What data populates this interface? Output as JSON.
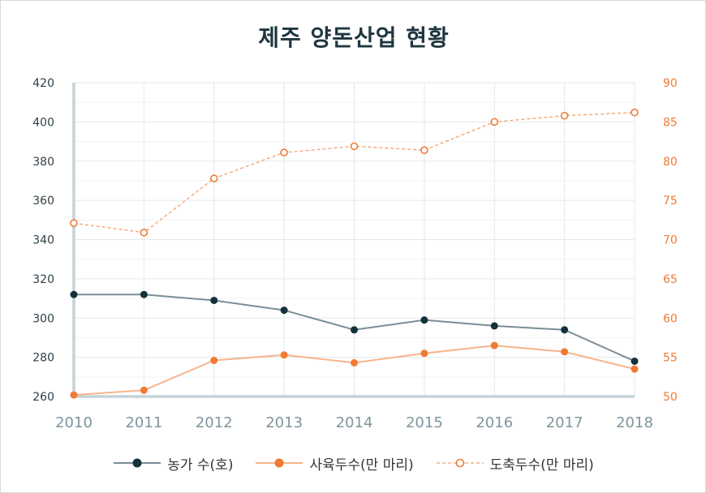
{
  "chart_data": {
    "type": "line",
    "title": "제주 양돈산업 현황",
    "categories": [
      "2010",
      "2011",
      "2012",
      "2013",
      "2014",
      "2015",
      "2016",
      "2017",
      "2018"
    ],
    "left_axis": {
      "ticks": [
        260,
        280,
        300,
        320,
        340,
        360,
        380,
        400,
        420
      ],
      "range": [
        260,
        420
      ]
    },
    "right_axis": {
      "ticks": [
        50,
        55,
        60,
        65,
        70,
        75,
        80,
        85,
        90
      ],
      "range": [
        50,
        90
      ]
    },
    "series": [
      {
        "name": "농가 수(호)",
        "axis": "left",
        "style": "solid-filled",
        "color": "#13313b",
        "line_color": "#7a8d96",
        "values": [
          312,
          312,
          309,
          304,
          294,
          299,
          296,
          294,
          278
        ]
      },
      {
        "name": "사육두수(만 마리)",
        "axis": "right",
        "style": "solid-filled",
        "color": "#f07a33",
        "line_color": "#f7b48a",
        "values": [
          50.2,
          50.8,
          54.6,
          55.3,
          54.3,
          55.5,
          56.5,
          55.7,
          53.5
        ]
      },
      {
        "name": "도축두수(만 마리)",
        "axis": "right",
        "style": "dashed-hollow",
        "color": "#f07a33",
        "line_color": "#f4a06c",
        "values": [
          72.1,
          70.9,
          77.8,
          81.1,
          81.9,
          81.4,
          85.0,
          85.8,
          86.2
        ]
      }
    ],
    "grid": true,
    "legend_position": "bottom"
  }
}
